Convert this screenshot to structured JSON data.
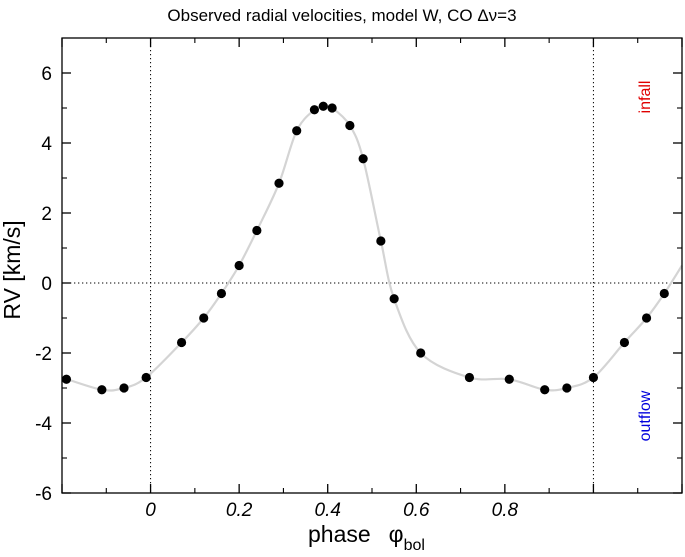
{
  "chart_data": {
    "type": "line",
    "title_main": "Observed radial velocities, model W, CO ",
    "title_symbol": "Δν=3",
    "xlabel": "phase",
    "xlabel_symbol": "φ",
    "xlabel_subscript": "bol",
    "ylabel": "RV   [km/s]",
    "xlim": [
      -0.2,
      1.2
    ],
    "ylim": [
      -6,
      7
    ],
    "xticks": [
      0,
      0.2,
      0.4,
      0.6,
      0.8
    ],
    "xtick_labels": [
      "0",
      "0.2",
      "0.4",
      "0.6",
      "0.8"
    ],
    "yticks": [
      -6,
      -4,
      -2,
      0,
      2,
      4,
      6
    ],
    "ytick_labels": [
      "-6",
      "-4",
      "-2",
      "0",
      "2",
      "4",
      "6"
    ],
    "reference_lines": {
      "x": [
        0,
        1
      ],
      "y": [
        0
      ]
    },
    "annotations": [
      {
        "text": "infall",
        "color": "#e00000"
      },
      {
        "text": "outflow",
        "color": "#0000dd"
      }
    ],
    "series": [
      {
        "name": "observed",
        "x": [
          -0.19,
          -0.11,
          -0.06,
          -0.01,
          0.07,
          0.12,
          0.16,
          0.2,
          0.24,
          0.29,
          0.33,
          0.37,
          0.39,
          0.41,
          0.45,
          0.48,
          0.52,
          0.55,
          0.61,
          0.72,
          0.81,
          0.89,
          0.94,
          1.0,
          1.07,
          1.12,
          1.16
        ],
        "y": [
          -2.75,
          -3.05,
          -3.0,
          -2.7,
          -1.7,
          -1.0,
          -0.3,
          0.5,
          1.5,
          2.85,
          4.35,
          4.95,
          5.05,
          5.0,
          4.5,
          3.55,
          1.2,
          -0.45,
          -2.0,
          -2.7,
          -2.75,
          -3.05,
          -3.0,
          -2.7,
          -1.7,
          -1.0,
          -0.3
        ],
        "line_x": [
          -0.2,
          -0.11,
          -0.06,
          -0.01,
          0.07,
          0.12,
          0.16,
          0.2,
          0.24,
          0.29,
          0.33,
          0.37,
          0.39,
          0.41,
          0.45,
          0.48,
          0.52,
          0.55,
          0.61,
          0.72,
          0.81,
          0.89,
          0.94,
          1.0,
          1.07,
          1.12,
          1.16,
          1.2
        ],
        "line_y": [
          -2.7,
          -3.05,
          -3.0,
          -2.7,
          -1.7,
          -1.0,
          -0.3,
          0.5,
          1.5,
          2.85,
          4.35,
          4.95,
          5.05,
          5.0,
          4.5,
          3.55,
          1.2,
          -0.45,
          -2.0,
          -2.7,
          -2.75,
          -3.05,
          -3.0,
          -2.7,
          -1.7,
          -1.0,
          -0.3,
          0.5
        ]
      }
    ]
  }
}
